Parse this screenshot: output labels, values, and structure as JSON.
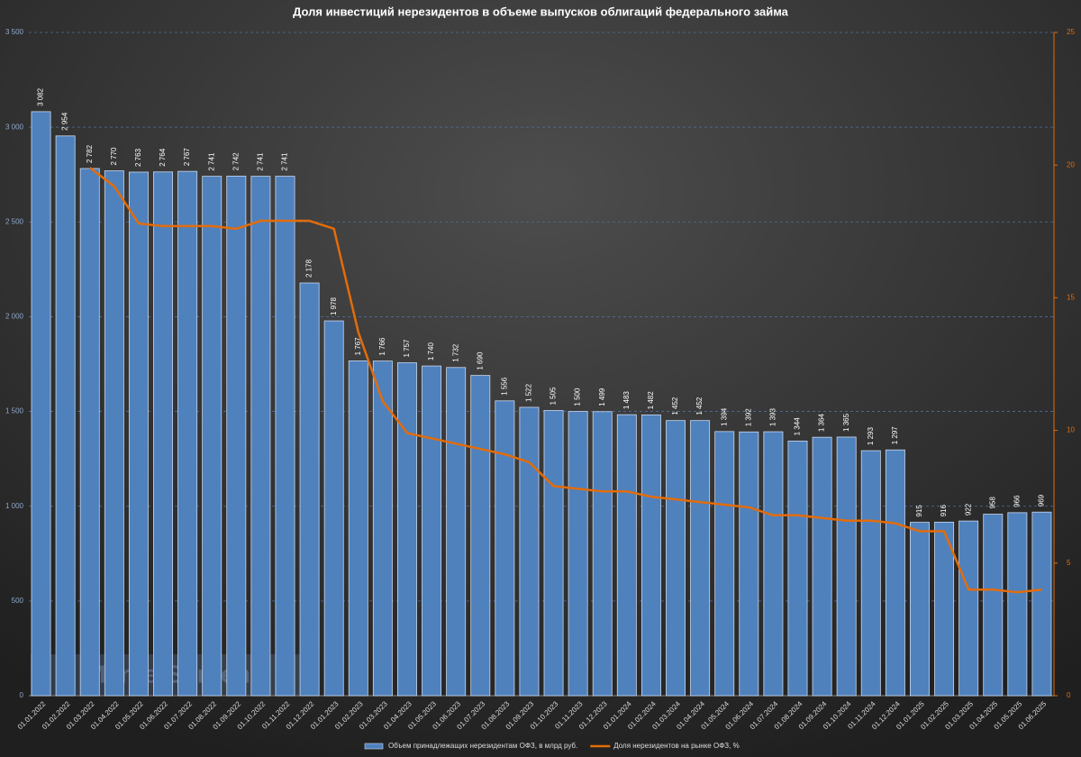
{
  "chart_data": {
    "type": "bar+line",
    "title": "Доля инвестиций нерезидентов в объеме выпусков облигаций федерального займа",
    "watermark": "MarketScreen",
    "categories": [
      "01.01.2022",
      "01.02.2022",
      "01.03.2022",
      "01.04.2022",
      "01.05.2022",
      "01.06.2022",
      "01.07.2022",
      "01.08.2022",
      "01.09.2022",
      "01.10.2022",
      "01.11.2022",
      "01.12.2022",
      "01.01.2023",
      "01.02.2023",
      "01.03.2023",
      "01.04.2023",
      "01.05.2023",
      "01.06.2023",
      "01.07.2023",
      "01.08.2023",
      "01.09.2023",
      "01.10.2023",
      "01.11.2023",
      "01.12.2023",
      "01.01.2024",
      "01.02.2024",
      "01.03.2024",
      "01.04.2024",
      "01.05.2024",
      "01.06.2024",
      "01.07.2024",
      "01.08.2024",
      "01.09.2024",
      "01.10.2024",
      "01.11.2024",
      "01.12.2024",
      "01.01.2025",
      "01.02.2025",
      "01.03.2025",
      "01.04.2025",
      "01.05.2025",
      "01.06.2025"
    ],
    "series": [
      {
        "name": "Объем принадлежащих нерезидентам ОФЗ, в млрд руб.",
        "type": "bar",
        "color": "#4f81bd",
        "values": [
          3082,
          2954,
          2782,
          2770,
          2763,
          2764,
          2767,
          2741,
          2742,
          2741,
          2741,
          2178,
          1978,
          1767,
          1766,
          1757,
          1740,
          1732,
          1690,
          1556,
          1522,
          1505,
          1500,
          1499,
          1483,
          1482,
          1452,
          1452,
          1394,
          1392,
          1393,
          1344,
          1364,
          1365,
          1293,
          1297,
          915,
          916,
          922,
          958,
          966,
          969
        ],
        "value_labels": [
          "3 082",
          "2 954",
          "2 782",
          "2 770",
          "2 763",
          "2 764",
          "2 767",
          "2 741",
          "2 742",
          "2 741",
          "2 741",
          "2 178",
          "1 978",
          "1 767",
          "1 766",
          "1 757",
          "1 740",
          "1 732",
          "1 690",
          "1 556",
          "1 522",
          "1 505",
          "1 500",
          "1 499",
          "1 483",
          "1 482",
          "1 452",
          "1 452",
          "1 394",
          "1 392",
          "1 393",
          "1 344",
          "1 364",
          "1 365",
          "1 293",
          "1 297",
          "915",
          "916",
          "922",
          "958",
          "966",
          "969"
        ]
      },
      {
        "name": "Доля нерезидентов на рынке ОФЗ, %",
        "type": "line",
        "axis": "y2",
        "color": "#e36c0a",
        "values": [
          null,
          null,
          19.9,
          19.2,
          17.8,
          17.7,
          17.7,
          17.7,
          17.6,
          17.9,
          17.9,
          17.9,
          17.6,
          13.7,
          11.1,
          9.9,
          9.7,
          9.5,
          9.3,
          9.1,
          8.8,
          7.9,
          7.8,
          7.7,
          7.7,
          7.5,
          7.4,
          7.3,
          7.2,
          7.1,
          6.8,
          6.8,
          6.7,
          6.6,
          6.6,
          6.5,
          6.2,
          6.2,
          4.0,
          4.0,
          3.9,
          4.0
        ]
      }
    ],
    "ylim": [
      0,
      3500
    ],
    "yticks": [
      0,
      500,
      {
        "value": 1000,
        "label": "1 000"
      },
      {
        "value": 1500,
        "label": "1 500"
      },
      {
        "value": 2000,
        "label": "2 000"
      },
      {
        "value": 2500,
        "label": "2 500"
      },
      {
        "value": 3000,
        "label": "3 000"
      },
      {
        "value": 3500,
        "label": "3 500"
      }
    ],
    "y2lim": [
      0,
      25
    ],
    "y2ticks": [
      0,
      5,
      10,
      15,
      20,
      25
    ],
    "grid": true,
    "legend": "bottom"
  }
}
